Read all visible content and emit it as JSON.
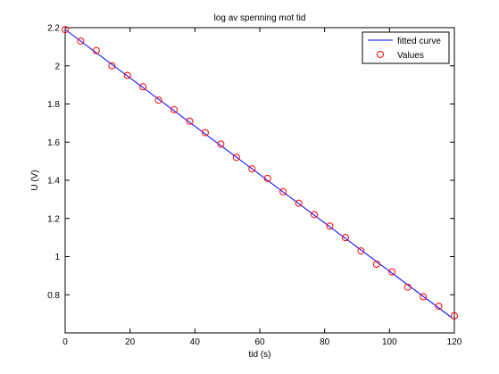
{
  "chart_data": {
    "type": "scatter",
    "title": "log av spenning mot tid",
    "xlabel": "tid (s)",
    "ylabel": "U (V)",
    "xlim": [
      0,
      120
    ],
    "ylim": [
      0.6,
      2.2
    ],
    "xticks": [
      0,
      20,
      40,
      60,
      80,
      100,
      120
    ],
    "yticks": [
      0.8,
      1,
      1.2,
      1.4,
      1.6,
      1.8,
      2,
      2.2
    ],
    "xtick_labels": [
      "0",
      "20",
      "40",
      "60",
      "80",
      "100",
      "120"
    ],
    "ytick_labels": [
      "0.8",
      "1",
      "1.2",
      "1.4",
      "1.6",
      "1.8",
      "2",
      "2.2"
    ],
    "grid": false,
    "legend_position": "top-right",
    "series": [
      {
        "name": "fitted curve",
        "kind": "line",
        "color": "#0000ff",
        "x": [
          0,
          120
        ],
        "y": [
          2.19,
          0.67
        ]
      },
      {
        "name": "Values",
        "kind": "marker",
        "marker": "circle",
        "color": "#ff0000",
        "x": [
          0,
          4.8,
          9.6,
          14.4,
          19.2,
          24,
          28.8,
          33.6,
          38.4,
          43.2,
          48,
          52.8,
          57.6,
          62.4,
          67.2,
          72,
          76.8,
          81.6,
          86.4,
          91.2,
          96,
          100.8,
          105.6,
          110.4,
          115.2,
          120
        ],
        "y": [
          2.19,
          2.13,
          2.08,
          2.0,
          1.95,
          1.89,
          1.82,
          1.77,
          1.71,
          1.65,
          1.59,
          1.52,
          1.46,
          1.41,
          1.34,
          1.28,
          1.22,
          1.16,
          1.1,
          1.03,
          0.96,
          0.92,
          0.84,
          0.79,
          0.74,
          0.69
        ]
      }
    ]
  }
}
